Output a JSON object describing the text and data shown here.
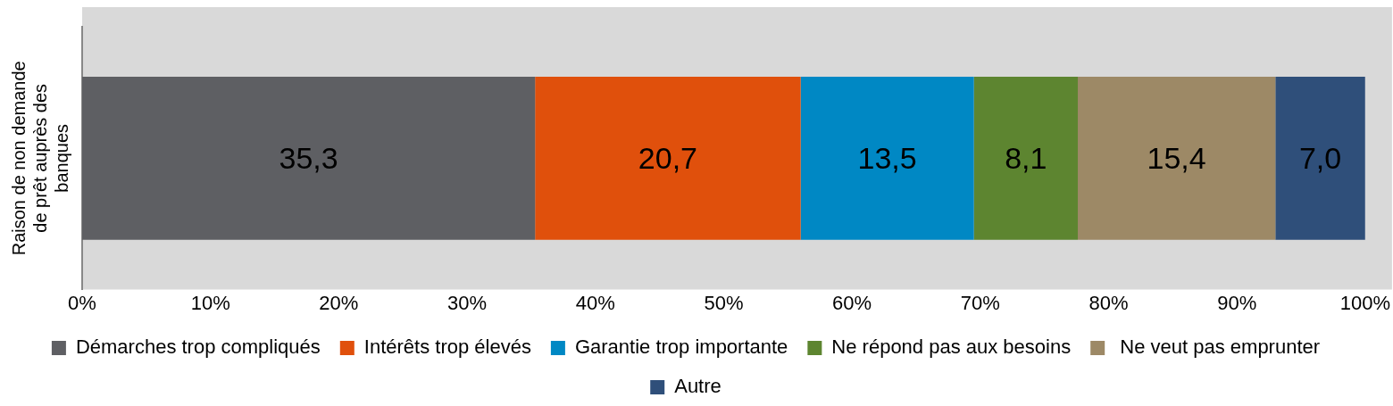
{
  "chart_data": {
    "type": "bar",
    "orientation": "horizontal",
    "stacked": true,
    "ylabel": "Raison de non demande de prêt auprès des banques",
    "categories": [
      null
    ],
    "xlim": [
      0,
      100
    ],
    "xticks": [
      {
        "value": 0,
        "label": "0%"
      },
      {
        "value": 10,
        "label": "10%"
      },
      {
        "value": 20,
        "label": "20%"
      },
      {
        "value": 30,
        "label": "30%"
      },
      {
        "value": 40,
        "label": "40%"
      },
      {
        "value": 50,
        "label": "50%"
      },
      {
        "value": 60,
        "label": "60%"
      },
      {
        "value": 70,
        "label": "70%"
      },
      {
        "value": 80,
        "label": "80%"
      },
      {
        "value": 90,
        "label": "90%"
      },
      {
        "value": 100,
        "label": "100%"
      }
    ],
    "grid": false,
    "legend": "bottom",
    "series": [
      {
        "name": "Démarches trop compliqués",
        "color": "#5e5f63",
        "values": [
          35.3
        ],
        "value_labels": [
          "35,3"
        ]
      },
      {
        "name": "Intérêts trop élevés",
        "color": "#e0500c",
        "values": [
          20.7
        ],
        "value_labels": [
          "20,7"
        ]
      },
      {
        "name": "Garantie trop importante",
        "color": "#0088c4",
        "values": [
          13.5
        ],
        "value_labels": [
          "13,5"
        ]
      },
      {
        "name": "Ne répond pas aux besoins",
        "color": "#5d8530",
        "values": [
          8.1
        ],
        "value_labels": [
          "8,1"
        ]
      },
      {
        "name": " Ne veut pas emprunter",
        "color": "#9d8966",
        "values": [
          15.4
        ],
        "value_labels": [
          "15,4"
        ]
      },
      {
        "name": "Autre",
        "color": "#2f4f7a",
        "values": [
          7.0
        ],
        "value_labels": [
          "7,0"
        ]
      }
    ]
  }
}
